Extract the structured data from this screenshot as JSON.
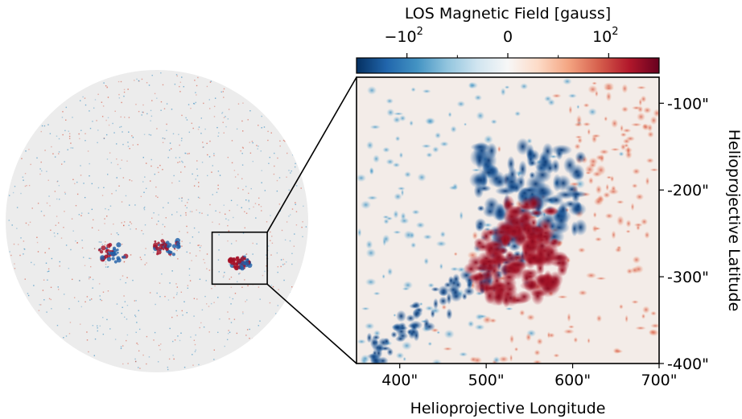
{
  "chart_data": {
    "type": "heatmap",
    "colorbar": {
      "label": "LOS Magnetic Field [gauss]",
      "scale": "symlog",
      "range": [
        -1000,
        1000
      ],
      "ticks": [
        {
          "value": -100,
          "label": "−10",
          "exp": "2"
        },
        {
          "value": 0,
          "label": "0",
          "exp": ""
        },
        {
          "value": 100,
          "label": "10",
          "exp": "2"
        }
      ],
      "colormap": [
        "#053061",
        "#2166ac",
        "#4393c3",
        "#92c5de",
        "#d1e5f0",
        "#f7f7f7",
        "#fddbc7",
        "#f4a582",
        "#d6604d",
        "#b2182b",
        "#67001f"
      ]
    },
    "full_disk": {
      "active_regions": [
        {
          "lon": -280,
          "lat": -200,
          "label": ""
        },
        {
          "lon": 60,
          "lat": -160,
          "label": ""
        },
        {
          "lon": 530,
          "lat": -260,
          "label": ""
        }
      ],
      "zoom_box": {
        "xlim": [
          350,
          700
        ],
        "ylim": [
          -400,
          -70
        ]
      }
    },
    "zoom": {
      "xlabel": "Helioprojective Longitude",
      "ylabel": "Helioprojective Latitude",
      "xlim": [
        350,
        700
      ],
      "ylim": [
        -400,
        -70
      ],
      "xticks": [
        {
          "value": 400,
          "label": "400\""
        },
        {
          "value": 500,
          "label": "500\""
        },
        {
          "value": 600,
          "label": "600\""
        },
        {
          "value": 700,
          "label": "700\""
        }
      ],
      "yticks": [
        {
          "value": -100,
          "label": "-100\""
        },
        {
          "value": -200,
          "label": "-200\""
        },
        {
          "value": -300,
          "label": "-300\""
        },
        {
          "value": -400,
          "label": "-400\""
        }
      ]
    }
  }
}
